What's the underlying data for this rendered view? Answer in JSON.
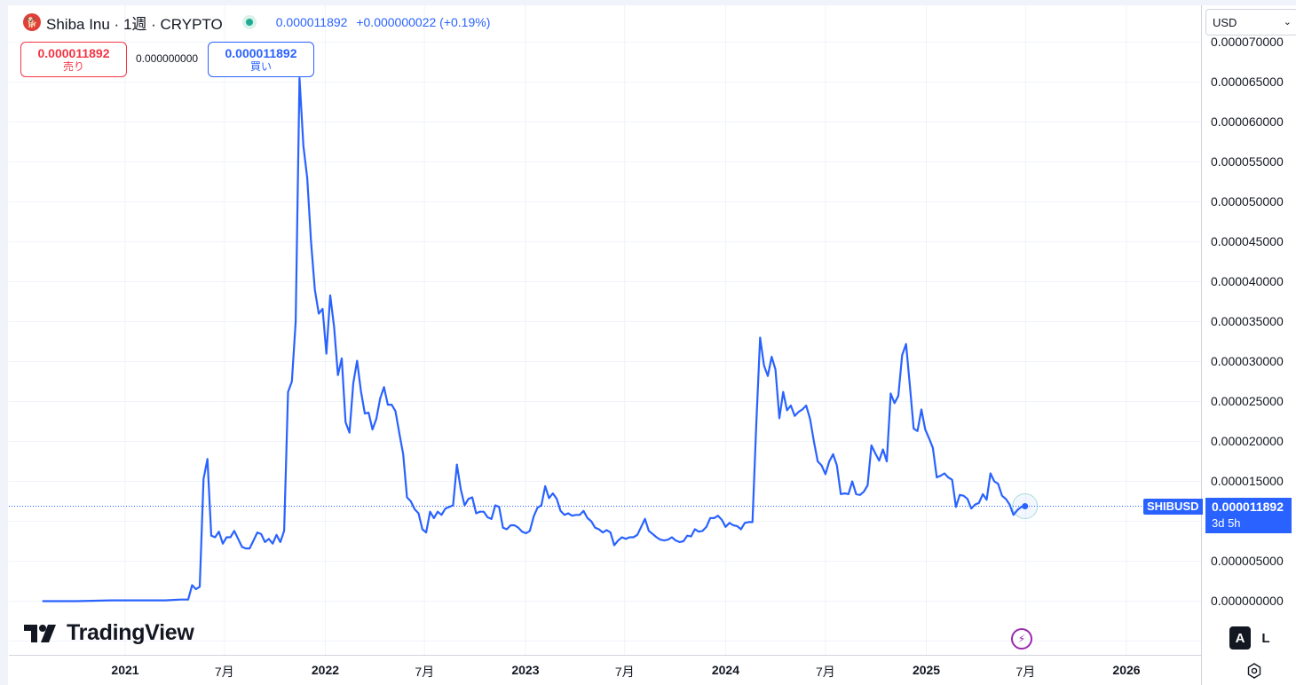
{
  "header": {
    "symbol_icon_text": "🐕",
    "title": "Shiba Inu · 1週 · CRYPTO",
    "last_price": "0.000011892",
    "change": "+0.000000022 (+0.19%)",
    "accent_color": "#2962ff",
    "live_color": "#22ab94"
  },
  "trade": {
    "sell_price": "0.000011892",
    "sell_label": "売り",
    "spread": "0.000000000",
    "buy_price": "0.000011892",
    "buy_label": "買い",
    "sell_color": "#f23645",
    "buy_color": "#2962ff"
  },
  "currency": {
    "value": "USD"
  },
  "price_tag": {
    "symbol": "SHIBUSD",
    "price": "0.000011892",
    "countdown": "3d 5h"
  },
  "logo": {
    "text": "TradingView"
  },
  "scale_buttons": {
    "auto": "A",
    "log": "L"
  },
  "chart_data": {
    "type": "line",
    "symbol": "SHIBUSD",
    "interval": "1週",
    "line_color": "#2962ff",
    "y_range": [
      -5e-06,
      7.05e-05
    ],
    "y_ticks": [
      {
        "value": 7e-05,
        "label": "0.000070000"
      },
      {
        "value": 6.5e-05,
        "label": "0.000065000"
      },
      {
        "value": 6e-05,
        "label": "0.000060000"
      },
      {
        "value": 5.5e-05,
        "label": "0.000055000"
      },
      {
        "value": 5e-05,
        "label": "0.000050000"
      },
      {
        "value": 4.5e-05,
        "label": "0.000045000"
      },
      {
        "value": 4e-05,
        "label": "0.000040000"
      },
      {
        "value": 3.5e-05,
        "label": "0.000035000"
      },
      {
        "value": 3e-05,
        "label": "0.000030000"
      },
      {
        "value": 2.5e-05,
        "label": "0.000025000"
      },
      {
        "value": 2e-05,
        "label": "0.000020000"
      },
      {
        "value": 1.5e-05,
        "label": "0.000015000"
      },
      {
        "value": 5e-06,
        "label": "0.000005000"
      },
      {
        "value": 0.0,
        "label": "0.000000000"
      }
    ],
    "x_ticks": [
      {
        "date": "2021-01-01",
        "label": "2021",
        "year": true
      },
      {
        "date": "2021-07-01",
        "label": "7月",
        "year": false
      },
      {
        "date": "2022-01-01",
        "label": "2022",
        "year": true
      },
      {
        "date": "2022-07-01",
        "label": "7月",
        "year": false
      },
      {
        "date": "2023-01-01",
        "label": "2023",
        "year": true
      },
      {
        "date": "2023-07-01",
        "label": "7月",
        "year": false
      },
      {
        "date": "2024-01-01",
        "label": "2024",
        "year": true
      },
      {
        "date": "2024-07-01",
        "label": "7月",
        "year": false
      },
      {
        "date": "2025-01-01",
        "label": "2025",
        "year": true
      },
      {
        "date": "2025-07-01",
        "label": "7月",
        "year": false
      },
      {
        "date": "2026-01-01",
        "label": "2026",
        "year": true
      }
    ],
    "last_value": 1.1892e-05,
    "grid": true,
    "points": [
      [
        "2020-08-03",
        0.0
      ],
      [
        "2020-10-05",
        0.0
      ],
      [
        "2020-12-07",
        1e-07
      ],
      [
        "2021-01-25",
        1e-07
      ],
      [
        "2021-03-15",
        1e-07
      ],
      [
        "2021-04-12",
        2e-07
      ],
      [
        "2021-04-26",
        2e-07
      ],
      [
        "2021-05-03",
        2e-06
      ],
      [
        "2021-05-10",
        1.5e-06
      ],
      [
        "2021-05-17",
        1.8e-06
      ],
      [
        "2021-05-24",
        1.53e-05
      ],
      [
        "2021-05-31",
        1.78e-05
      ],
      [
        "2021-06-07",
        8.2e-06
      ],
      [
        "2021-06-14",
        8e-06
      ],
      [
        "2021-06-21",
        8.7e-06
      ],
      [
        "2021-06-28",
        7.2e-06
      ],
      [
        "2021-07-05",
        8e-06
      ],
      [
        "2021-07-12",
        8e-06
      ],
      [
        "2021-07-19",
        8.8e-06
      ],
      [
        "2021-07-26",
        7.8e-06
      ],
      [
        "2021-08-02",
        6.8e-06
      ],
      [
        "2021-08-09",
        6.6e-06
      ],
      [
        "2021-08-16",
        6.6e-06
      ],
      [
        "2021-08-23",
        7.6e-06
      ],
      [
        "2021-08-30",
        8.6e-06
      ],
      [
        "2021-09-06",
        8.4e-06
      ],
      [
        "2021-09-13",
        7.4e-06
      ],
      [
        "2021-09-20",
        7.8e-06
      ],
      [
        "2021-09-27",
        7.2e-06
      ],
      [
        "2021-10-04",
        8.3e-06
      ],
      [
        "2021-10-11",
        7.4e-06
      ],
      [
        "2021-10-18",
        8.8e-06
      ],
      [
        "2021-10-25",
        2.62e-05
      ],
      [
        "2021-11-01",
        2.75e-05
      ],
      [
        "2021-11-08",
        3.5e-05
      ],
      [
        "2021-11-15",
        6.55e-05
      ],
      [
        "2021-11-22",
        5.7e-05
      ],
      [
        "2021-11-29",
        5.3e-05
      ],
      [
        "2021-12-06",
        4.5e-05
      ],
      [
        "2021-12-13",
        3.9e-05
      ],
      [
        "2021-12-20",
        3.6e-05
      ],
      [
        "2021-12-27",
        3.66e-05
      ],
      [
        "2022-01-03",
        3.1e-05
      ],
      [
        "2022-01-10",
        3.83e-05
      ],
      [
        "2022-01-17",
        3.43e-05
      ],
      [
        "2022-01-24",
        2.83e-05
      ],
      [
        "2022-01-31",
        3.04e-05
      ],
      [
        "2022-02-07",
        2.24e-05
      ],
      [
        "2022-02-14",
        2.11e-05
      ],
      [
        "2022-02-21",
        2.73e-05
      ],
      [
        "2022-02-28",
        3.01e-05
      ],
      [
        "2022-03-07",
        2.63e-05
      ],
      [
        "2022-03-14",
        2.35e-05
      ],
      [
        "2022-03-21",
        2.36e-05
      ],
      [
        "2022-03-28",
        2.15e-05
      ],
      [
        "2022-04-04",
        2.28e-05
      ],
      [
        "2022-04-11",
        2.54e-05
      ],
      [
        "2022-04-18",
        2.68e-05
      ],
      [
        "2022-04-25",
        2.46e-05
      ],
      [
        "2022-05-02",
        2.46e-05
      ],
      [
        "2022-05-09",
        2.38e-05
      ],
      [
        "2022-05-16",
        2.1e-05
      ],
      [
        "2022-05-23",
        1.84e-05
      ],
      [
        "2022-05-30",
        1.3e-05
      ],
      [
        "2022-06-06",
        1.25e-05
      ],
      [
        "2022-06-13",
        1.15e-05
      ],
      [
        "2022-06-20",
        1.1e-05
      ],
      [
        "2022-06-27",
        9e-06
      ],
      [
        "2022-07-04",
        8.6e-06
      ],
      [
        "2022-07-11",
        1.12e-05
      ],
      [
        "2022-07-18",
        1.04e-05
      ],
      [
        "2022-07-25",
        1.12e-05
      ],
      [
        "2022-08-01",
        1.08e-05
      ],
      [
        "2022-08-08",
        1.16e-05
      ],
      [
        "2022-08-15",
        1.18e-05
      ],
      [
        "2022-08-22",
        1.2e-05
      ],
      [
        "2022-08-29",
        1.71e-05
      ],
      [
        "2022-09-05",
        1.4e-05
      ],
      [
        "2022-09-12",
        1.2e-05
      ],
      [
        "2022-09-19",
        1.28e-05
      ],
      [
        "2022-09-26",
        1.3e-05
      ],
      [
        "2022-10-03",
        1.1e-05
      ],
      [
        "2022-10-10",
        1.12e-05
      ],
      [
        "2022-10-17",
        1.12e-05
      ],
      [
        "2022-10-24",
        1.05e-05
      ],
      [
        "2022-10-31",
        1.03e-05
      ],
      [
        "2022-11-07",
        1.2e-05
      ],
      [
        "2022-11-14",
        1.18e-05
      ],
      [
        "2022-11-21",
        9.2e-06
      ],
      [
        "2022-11-28",
        9e-06
      ],
      [
        "2022-12-05",
        9.5e-06
      ],
      [
        "2022-12-12",
        9.5e-06
      ],
      [
        "2022-12-19",
        9.2e-06
      ],
      [
        "2022-12-26",
        8.7e-06
      ],
      [
        "2023-01-02",
        8.5e-06
      ],
      [
        "2023-01-09",
        8.8e-06
      ],
      [
        "2023-01-16",
        1.06e-05
      ],
      [
        "2023-01-23",
        1.17e-05
      ],
      [
        "2023-01-30",
        1.2e-05
      ],
      [
        "2023-02-06",
        1.44e-05
      ],
      [
        "2023-02-13",
        1.29e-05
      ],
      [
        "2023-02-20",
        1.35e-05
      ],
      [
        "2023-02-27",
        1.28e-05
      ],
      [
        "2023-03-06",
        1.13e-05
      ],
      [
        "2023-03-13",
        1.08e-05
      ],
      [
        "2023-03-20",
        1.1e-05
      ],
      [
        "2023-03-27",
        1.07e-05
      ],
      [
        "2023-04-03",
        1.08e-05
      ],
      [
        "2023-04-10",
        1.08e-05
      ],
      [
        "2023-04-17",
        1.13e-05
      ],
      [
        "2023-04-24",
        1.04e-05
      ],
      [
        "2023-05-01",
        1e-05
      ],
      [
        "2023-05-08",
        9.2e-06
      ],
      [
        "2023-05-15",
        9e-06
      ],
      [
        "2023-05-22",
        8.6e-06
      ],
      [
        "2023-05-29",
        8.9e-06
      ],
      [
        "2023-06-05",
        8.6e-06
      ],
      [
        "2023-06-12",
        7e-06
      ],
      [
        "2023-06-19",
        7.6e-06
      ],
      [
        "2023-06-26",
        8e-06
      ],
      [
        "2023-07-03",
        7.8e-06
      ],
      [
        "2023-07-10",
        8e-06
      ],
      [
        "2023-07-17",
        8e-06
      ],
      [
        "2023-07-24",
        8.3e-06
      ],
      [
        "2023-07-31",
        9.3e-06
      ],
      [
        "2023-08-07",
        1.03e-05
      ],
      [
        "2023-08-14",
        8.8e-06
      ],
      [
        "2023-08-21",
        8.4e-06
      ],
      [
        "2023-08-28",
        8e-06
      ],
      [
        "2023-09-04",
        7.7e-06
      ],
      [
        "2023-09-11",
        7.6e-06
      ],
      [
        "2023-09-18",
        7.7e-06
      ],
      [
        "2023-09-25",
        8e-06
      ],
      [
        "2023-10-02",
        7.6e-06
      ],
      [
        "2023-10-09",
        7.4e-06
      ],
      [
        "2023-10-16",
        7.5e-06
      ],
      [
        "2023-10-23",
        8.2e-06
      ],
      [
        "2023-10-30",
        8.1e-06
      ],
      [
        "2023-11-06",
        9e-06
      ],
      [
        "2023-11-13",
        8.7e-06
      ],
      [
        "2023-11-20",
        8.8e-06
      ],
      [
        "2023-11-27",
        9.3e-06
      ],
      [
        "2023-12-04",
        1.04e-05
      ],
      [
        "2023-12-11",
        1.04e-05
      ],
      [
        "2023-12-18",
        1.07e-05
      ],
      [
        "2023-12-25",
        1.02e-05
      ],
      [
        "2024-01-01",
        9.3e-06
      ],
      [
        "2024-01-08",
        9.8e-06
      ],
      [
        "2024-01-15",
        9.5e-06
      ],
      [
        "2024-01-22",
        9.4e-06
      ],
      [
        "2024-01-29",
        9e-06
      ],
      [
        "2024-02-05",
        9.8e-06
      ],
      [
        "2024-02-12",
        9.9e-06
      ],
      [
        "2024-02-19",
        9.9e-06
      ],
      [
        "2024-02-26",
        2.22e-05
      ],
      [
        "2024-03-04",
        3.3e-05
      ],
      [
        "2024-03-11",
        2.95e-05
      ],
      [
        "2024-03-18",
        2.82e-05
      ],
      [
        "2024-03-25",
        3.06e-05
      ],
      [
        "2024-04-01",
        2.9e-05
      ],
      [
        "2024-04-08",
        2.29e-05
      ],
      [
        "2024-04-15",
        2.62e-05
      ],
      [
        "2024-04-22",
        2.39e-05
      ],
      [
        "2024-04-29",
        2.45e-05
      ],
      [
        "2024-05-06",
        2.32e-05
      ],
      [
        "2024-05-13",
        2.37e-05
      ],
      [
        "2024-05-20",
        2.4e-05
      ],
      [
        "2024-05-27",
        2.45e-05
      ],
      [
        "2024-06-03",
        2.28e-05
      ],
      [
        "2024-06-10",
        2e-05
      ],
      [
        "2024-06-17",
        1.75e-05
      ],
      [
        "2024-06-24",
        1.7e-05
      ],
      [
        "2024-07-01",
        1.59e-05
      ],
      [
        "2024-07-08",
        1.75e-05
      ],
      [
        "2024-07-15",
        1.84e-05
      ],
      [
        "2024-07-22",
        1.7e-05
      ],
      [
        "2024-07-29",
        1.34e-05
      ],
      [
        "2024-08-05",
        1.35e-05
      ],
      [
        "2024-08-12",
        1.34e-05
      ],
      [
        "2024-08-19",
        1.5e-05
      ],
      [
        "2024-08-26",
        1.34e-05
      ],
      [
        "2024-09-02",
        1.33e-05
      ],
      [
        "2024-09-09",
        1.37e-05
      ],
      [
        "2024-09-16",
        1.45e-05
      ],
      [
        "2024-09-23",
        1.95e-05
      ],
      [
        "2024-09-30",
        1.85e-05
      ],
      [
        "2024-10-07",
        1.76e-05
      ],
      [
        "2024-10-14",
        1.9e-05
      ],
      [
        "2024-10-21",
        1.75e-05
      ],
      [
        "2024-10-28",
        2.6e-05
      ],
      [
        "2024-11-04",
        2.48e-05
      ],
      [
        "2024-11-11",
        2.57e-05
      ],
      [
        "2024-11-18",
        3.08e-05
      ],
      [
        "2024-11-25",
        3.22e-05
      ],
      [
        "2024-12-02",
        2.7e-05
      ],
      [
        "2024-12-09",
        2.16e-05
      ],
      [
        "2024-12-16",
        2.13e-05
      ],
      [
        "2024-12-23",
        2.4e-05
      ],
      [
        "2024-12-30",
        2.15e-05
      ],
      [
        "2025-01-06",
        2.04e-05
      ],
      [
        "2025-01-13",
        1.92e-05
      ],
      [
        "2025-01-20",
        1.55e-05
      ],
      [
        "2025-01-27",
        1.57e-05
      ],
      [
        "2025-02-03",
        1.6e-05
      ],
      [
        "2025-02-10",
        1.55e-05
      ],
      [
        "2025-02-17",
        1.52e-05
      ],
      [
        "2025-02-24",
        1.18e-05
      ],
      [
        "2025-03-03",
        1.33e-05
      ],
      [
        "2025-03-10",
        1.32e-05
      ],
      [
        "2025-03-17",
        1.28e-05
      ],
      [
        "2025-03-24",
        1.16e-05
      ],
      [
        "2025-03-31",
        1.21e-05
      ],
      [
        "2025-04-07",
        1.23e-05
      ],
      [
        "2025-04-14",
        1.34e-05
      ],
      [
        "2025-04-21",
        1.27e-05
      ],
      [
        "2025-04-28",
        1.6e-05
      ],
      [
        "2025-05-05",
        1.5e-05
      ],
      [
        "2025-05-12",
        1.47e-05
      ],
      [
        "2025-05-19",
        1.32e-05
      ],
      [
        "2025-05-26",
        1.28e-05
      ],
      [
        "2025-06-02",
        1.21e-05
      ],
      [
        "2025-06-09",
        1.08e-05
      ],
      [
        "2025-06-16",
        1.14e-05
      ],
      [
        "2025-06-23",
        1.18e-05
      ],
      [
        "2025-06-30",
        1.18918e-05
      ]
    ]
  }
}
